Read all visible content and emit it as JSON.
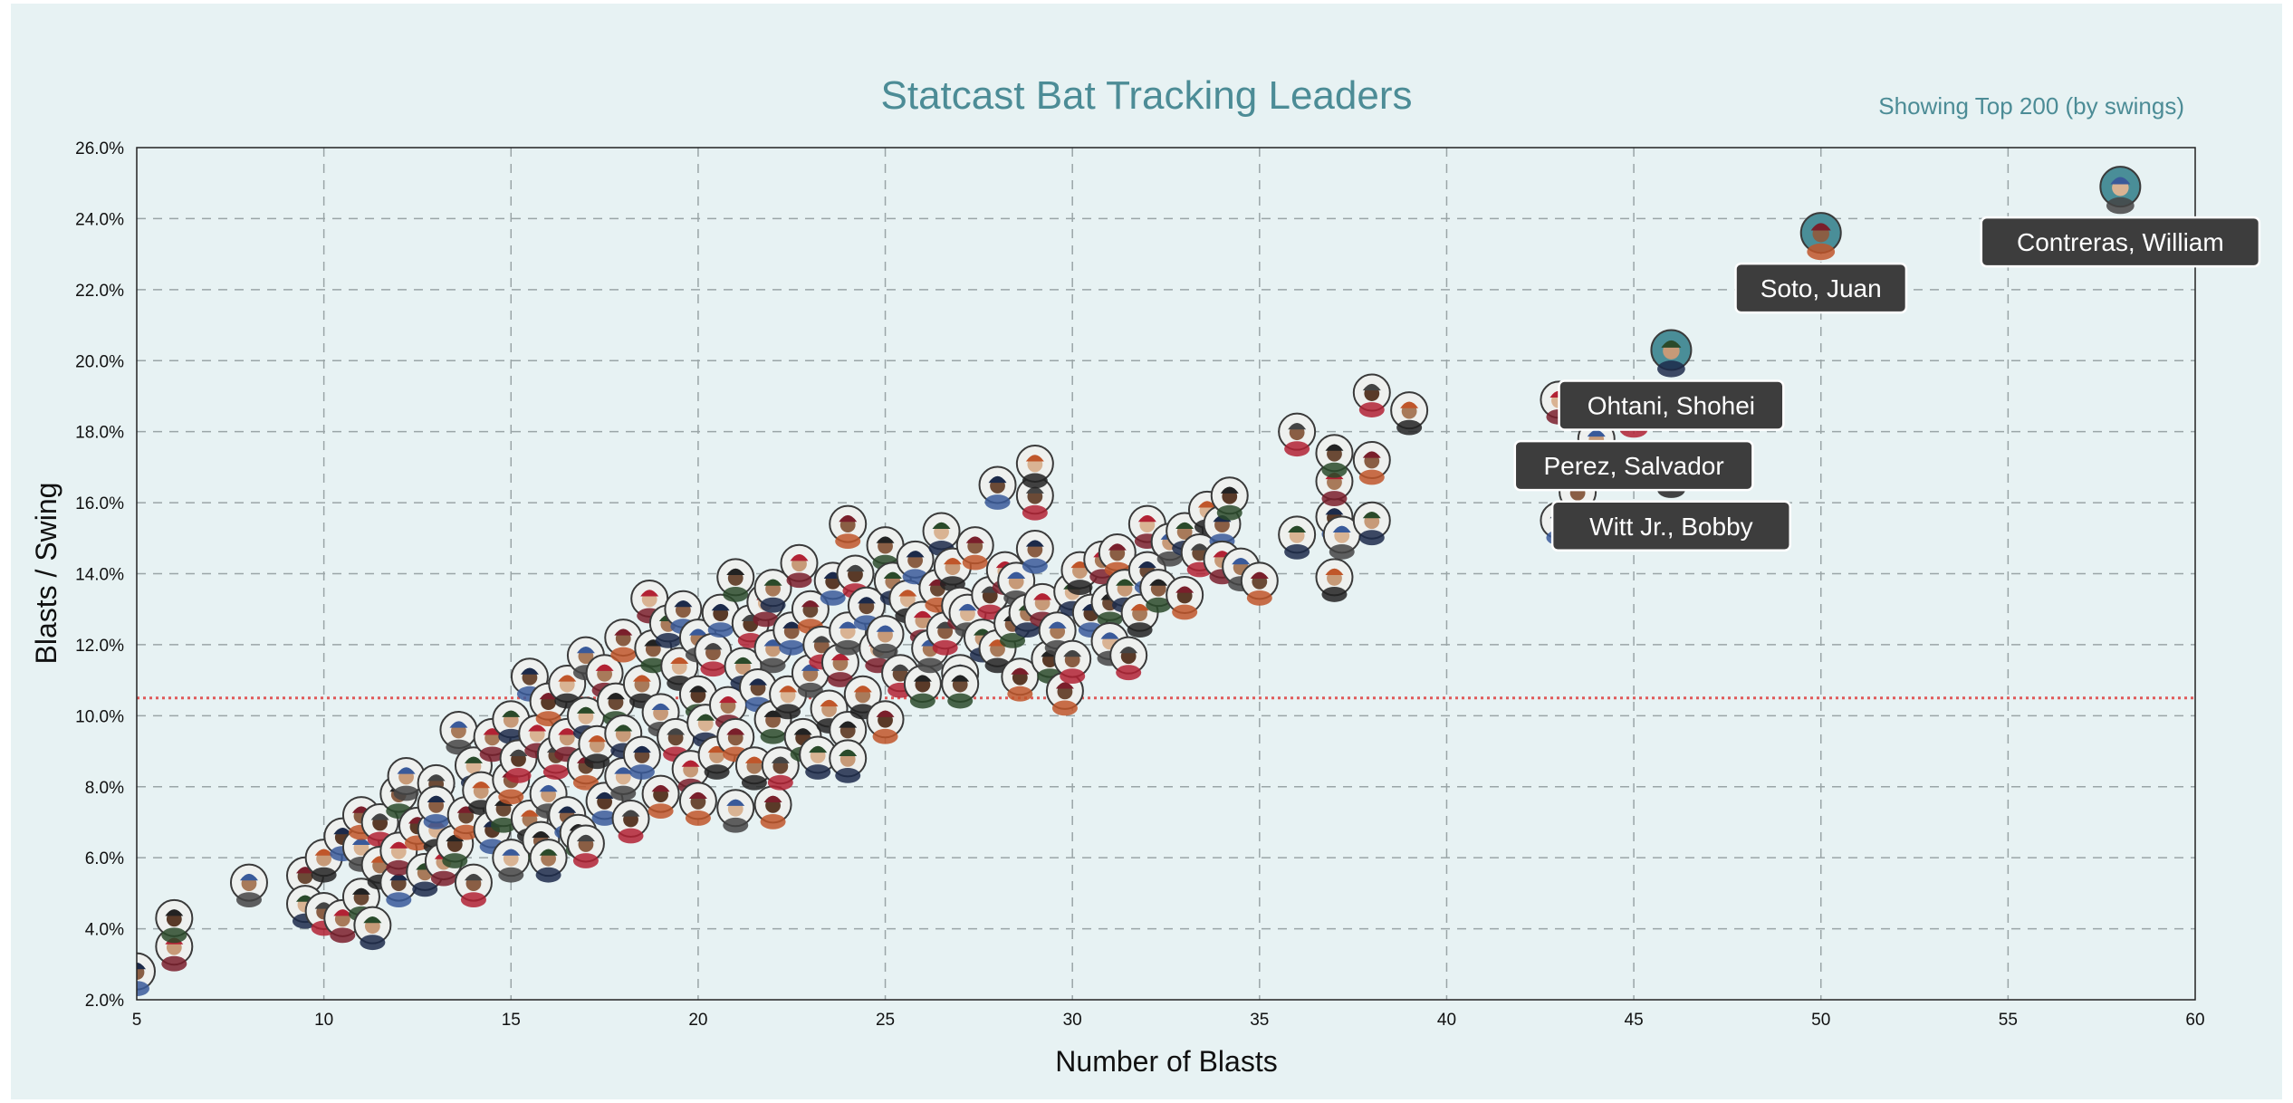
{
  "header": {
    "title": "Statcast Bat Tracking Leaders",
    "subtitle": "Showing Top 200 (by swings)"
  },
  "chart_data": {
    "type": "scatter",
    "title": "Statcast Bat Tracking Leaders",
    "subtitle": "Showing Top 200 (by swings)",
    "xlabel": "Number of Blasts",
    "ylabel": "Blasts / Swing",
    "xlim": [
      5,
      60
    ],
    "ylim": [
      2,
      26
    ],
    "x_ticks": [
      5,
      10,
      15,
      20,
      25,
      30,
      35,
      40,
      45,
      50,
      55,
      60
    ],
    "y_ticks": [
      2,
      4,
      6,
      8,
      10,
      12,
      14,
      16,
      18,
      20,
      22,
      24,
      26
    ],
    "x_tick_labels": [
      "5",
      "10",
      "15",
      "20",
      "25",
      "30",
      "35",
      "40",
      "45",
      "50",
      "55",
      "60"
    ],
    "y_tick_labels": [
      "2.0%",
      "4.0%",
      "6.0%",
      "8.0%",
      "10.0%",
      "12.0%",
      "14.0%",
      "16.0%",
      "18.0%",
      "20.0%",
      "22.0%",
      "24.0%",
      "26.0%"
    ],
    "grid": true,
    "reference_line": {
      "y": 10.5,
      "color": "#e05a5a",
      "style": "dotted"
    },
    "colors": {
      "marker_border": "#3a3a3a",
      "highlight_fill": "#4a8e98",
      "label_bg": "#3d3d3d",
      "label_text": "#ffffff",
      "face": "#7a5a44"
    },
    "highlighted": [
      {
        "name": "Contreras, William",
        "x": 58,
        "y": 24.9
      },
      {
        "name": "Soto, Juan",
        "x": 50,
        "y": 23.6
      },
      {
        "name": "Ohtani, Shohei",
        "x": 46,
        "y": 20.3
      },
      {
        "name": "Perez, Salvador",
        "x": 45,
        "y": 18.6
      },
      {
        "name": "Witt Jr., Bobby",
        "x": 46,
        "y": 16.9
      }
    ],
    "points": [
      [
        5,
        2.8
      ],
      [
        6,
        3.5
      ],
      [
        6,
        4.3
      ],
      [
        8,
        5.3
      ],
      [
        9.5,
        5.5
      ],
      [
        9.5,
        4.7
      ],
      [
        10,
        4.5
      ],
      [
        10,
        6.0
      ],
      [
        10.5,
        6.6
      ],
      [
        10.5,
        4.3
      ],
      [
        11,
        4.9
      ],
      [
        11,
        6.3
      ],
      [
        11,
        7.2
      ],
      [
        11.3,
        4.1
      ],
      [
        11.5,
        7.0
      ],
      [
        11.5,
        5.8
      ],
      [
        12,
        5.3
      ],
      [
        12,
        6.2
      ],
      [
        12,
        7.8
      ],
      [
        12.2,
        8.3
      ],
      [
        12.5,
        6.9
      ],
      [
        12.7,
        5.6
      ],
      [
        13,
        8.1
      ],
      [
        13,
        6.8
      ],
      [
        13,
        7.5
      ],
      [
        13.2,
        5.9
      ],
      [
        13.5,
        6.4
      ],
      [
        13.6,
        9.6
      ],
      [
        13.8,
        7.2
      ],
      [
        14,
        8.6
      ],
      [
        14,
        5.3
      ],
      [
        14.2,
        7.9
      ],
      [
        14.5,
        6.8
      ],
      [
        14.5,
        9.4
      ],
      [
        14.8,
        7.4
      ],
      [
        15,
        6.0
      ],
      [
        15,
        8.2
      ],
      [
        15,
        9.9
      ],
      [
        15.2,
        8.8
      ],
      [
        15.5,
        7.1
      ],
      [
        15.5,
        11.1
      ],
      [
        15.7,
        9.5
      ],
      [
        15.8,
        6.5
      ],
      [
        16,
        7.8
      ],
      [
        16,
        10.4
      ],
      [
        16,
        6.0
      ],
      [
        16.2,
        8.9
      ],
      [
        16.5,
        10.9
      ],
      [
        16.5,
        7.2
      ],
      [
        16.5,
        9.4
      ],
      [
        16.8,
        6.7
      ],
      [
        17,
        11.7
      ],
      [
        17,
        8.6
      ],
      [
        17,
        10.0
      ],
      [
        17,
        6.4
      ],
      [
        17.3,
        9.2
      ],
      [
        17.5,
        7.6
      ],
      [
        17.5,
        11.2
      ],
      [
        17.8,
        10.4
      ],
      [
        18,
        8.3
      ],
      [
        18,
        12.2
      ],
      [
        18,
        9.5
      ],
      [
        18.2,
        7.1
      ],
      [
        18.5,
        10.9
      ],
      [
        18.5,
        8.9
      ],
      [
        18.7,
        13.3
      ],
      [
        18.8,
        11.9
      ],
      [
        19,
        10.1
      ],
      [
        19,
        7.8
      ],
      [
        19.2,
        12.6
      ],
      [
        19.4,
        9.4
      ],
      [
        19.5,
        11.4
      ],
      [
        19.6,
        13.0
      ],
      [
        19.8,
        8.5
      ],
      [
        20,
        10.6
      ],
      [
        20,
        12.2
      ],
      [
        20,
        7.6
      ],
      [
        20.2,
        9.8
      ],
      [
        20.4,
        11.8
      ],
      [
        20.5,
        8.9
      ],
      [
        20.6,
        12.9
      ],
      [
        20.8,
        10.3
      ],
      [
        21,
        13.9
      ],
      [
        21,
        7.4
      ],
      [
        21,
        9.4
      ],
      [
        21.2,
        11.4
      ],
      [
        21.4,
        12.6
      ],
      [
        21.5,
        8.6
      ],
      [
        21.6,
        10.8
      ],
      [
        21.8,
        13.2
      ],
      [
        22,
        9.9
      ],
      [
        22,
        11.9
      ],
      [
        22,
        7.5
      ],
      [
        22,
        13.6
      ],
      [
        22.2,
        8.6
      ],
      [
        22.4,
        10.6
      ],
      [
        22.5,
        12.4
      ],
      [
        22.7,
        14.3
      ],
      [
        22.8,
        9.4
      ],
      [
        23,
        11.2
      ],
      [
        23,
        13.0
      ],
      [
        23.2,
        8.9
      ],
      [
        23.3,
        12.0
      ],
      [
        23.5,
        10.2
      ],
      [
        23.6,
        13.8
      ],
      [
        23.8,
        11.5
      ],
      [
        24,
        9.6
      ],
      [
        24,
        12.4
      ],
      [
        24,
        15.4
      ],
      [
        24,
        8.8
      ],
      [
        24.2,
        14.0
      ],
      [
        24.4,
        10.6
      ],
      [
        24.5,
        13.1
      ],
      [
        24.8,
        11.9
      ],
      [
        25,
        14.8
      ],
      [
        25,
        12.3
      ],
      [
        25,
        9.9
      ],
      [
        25.2,
        13.8
      ],
      [
        25.4,
        11.2
      ],
      [
        25.6,
        13.3
      ],
      [
        25.8,
        14.4
      ],
      [
        26,
        12.7
      ],
      [
        26,
        10.9
      ],
      [
        26.2,
        11.9
      ],
      [
        26.4,
        13.6
      ],
      [
        26.5,
        15.2
      ],
      [
        26.6,
        12.4
      ],
      [
        26.8,
        14.2
      ],
      [
        27,
        11.2
      ],
      [
        27,
        13.1
      ],
      [
        27,
        10.9
      ],
      [
        27.2,
        12.9
      ],
      [
        27.4,
        14.8
      ],
      [
        27.6,
        12.2
      ],
      [
        27.8,
        13.4
      ],
      [
        28,
        11.9
      ],
      [
        28,
        16.5
      ],
      [
        28.2,
        14.1
      ],
      [
        28.4,
        12.6
      ],
      [
        28.5,
        13.8
      ],
      [
        28.6,
        11.1
      ],
      [
        28.8,
        12.9
      ],
      [
        29,
        16.2
      ],
      [
        29,
        17.1
      ],
      [
        29,
        14.7
      ],
      [
        29.2,
        13.2
      ],
      [
        29.4,
        11.6
      ],
      [
        29.6,
        12.4
      ],
      [
        29.8,
        10.7
      ],
      [
        30,
        13.5
      ],
      [
        30,
        11.6
      ],
      [
        30.2,
        14.1
      ],
      [
        30.5,
        12.9
      ],
      [
        30.8,
        14.4
      ],
      [
        31,
        13.2
      ],
      [
        31,
        12.1
      ],
      [
        31.2,
        14.6
      ],
      [
        31.4,
        13.6
      ],
      [
        31.5,
        11.7
      ],
      [
        31.8,
        12.9
      ],
      [
        32,
        14.1
      ],
      [
        32,
        15.4
      ],
      [
        32.3,
        13.6
      ],
      [
        32.6,
        14.9
      ],
      [
        33,
        13.4
      ],
      [
        33,
        15.2
      ],
      [
        33.4,
        14.6
      ],
      [
        33.6,
        15.8
      ],
      [
        34,
        15.4
      ],
      [
        34,
        14.4
      ],
      [
        34.2,
        16.2
      ],
      [
        34.5,
        14.2
      ],
      [
        35,
        13.8
      ],
      [
        36,
        15.1
      ],
      [
        36,
        18.0
      ],
      [
        37,
        13.9
      ],
      [
        37,
        15.6
      ],
      [
        37,
        16.6
      ],
      [
        37,
        17.4
      ],
      [
        37.2,
        15.1
      ],
      [
        38,
        17.2
      ],
      [
        38,
        15.5
      ],
      [
        38,
        19.1
      ],
      [
        39,
        18.6
      ],
      [
        43,
        15.5
      ],
      [
        43,
        18.9
      ],
      [
        43.5,
        16.3
      ],
      [
        44,
        17.8
      ]
    ]
  }
}
